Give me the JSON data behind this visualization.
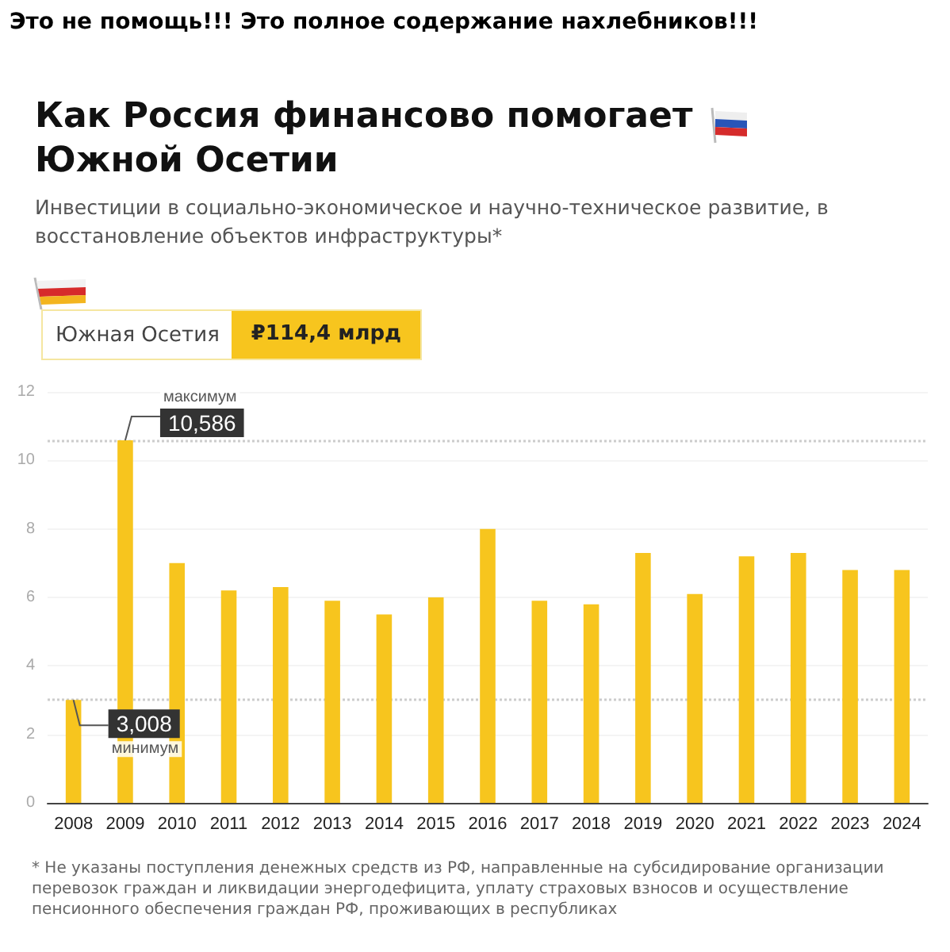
{
  "chart_data": {
    "type": "bar",
    "title": "Как Россия финансово помогает Южной Осетии",
    "subtitle": "Инвестиции в социально-экономическое и научно-техническое развитие, в восстановление объектов инфраструктуры*",
    "categories": [
      "2008",
      "2009",
      "2010",
      "2011",
      "2012",
      "2013",
      "2014",
      "2015",
      "2016",
      "2017",
      "2018",
      "2019",
      "2020",
      "2021",
      "2022",
      "2023",
      "2024"
    ],
    "values": [
      3.008,
      10.586,
      7.0,
      6.2,
      6.3,
      5.9,
      5.5,
      6.0,
      8.0,
      5.9,
      5.8,
      7.3,
      6.1,
      7.2,
      7.3,
      6.8,
      6.8
    ],
    "color": "#f7c51e",
    "ylim": [
      0,
      12
    ],
    "yticks": [
      0,
      2,
      4,
      6,
      8,
      10,
      12
    ],
    "grid": "y",
    "ref_lines": [
      {
        "axis": "y",
        "value": 10.586,
        "color": "#cccccc",
        "line_style": "dotted"
      },
      {
        "axis": "y",
        "value": 3.008,
        "color": "#cccccc",
        "line_style": "dotted"
      }
    ],
    "annotations": [
      "Это не помощь!!! Это полное содержание нахлебников!!!",
      "Южная Осетия",
      "₽114,4 млрд",
      "* Не указаны поступления денежных средств из РФ, направленные на субсидирование организации перевозок граждан и ликвидации энергодефицита, уплату страховых взносов и осуществление пенсионного обеспечения граждан РФ, проживающих в республиках",
      {
        "text": "максимум",
        "x": "2009",
        "y": 10.586
      },
      {
        "text": "10,586",
        "x": "2009",
        "y": 10.586
      },
      {
        "text": "3,008",
        "x": "2008",
        "y": 3.008
      },
      {
        "text": "минимум",
        "x": "2008",
        "y": 3.008
      }
    ]
  }
}
